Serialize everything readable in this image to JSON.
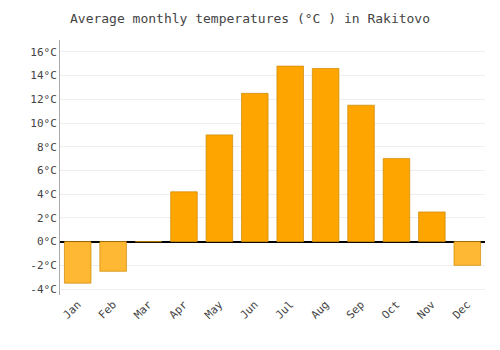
{
  "chart_data": {
    "type": "bar",
    "title": "Average monthly temperatures (°C ) in Rakitovo",
    "categories": [
      "Jan",
      "Feb",
      "Mar",
      "Apr",
      "May",
      "Jun",
      "Jul",
      "Aug",
      "Sep",
      "Oct",
      "Nov",
      "Dec"
    ],
    "values": [
      -3.5,
      -2.5,
      0.0,
      4.2,
      9.0,
      12.5,
      14.8,
      14.6,
      11.5,
      7.0,
      2.5,
      -2.0
    ],
    "colors": [
      "#FFB833",
      "#FFB833",
      "#FFA500",
      "#FFA500",
      "#FFA500",
      "#FFA500",
      "#FFA500",
      "#FFA500",
      "#FFA500",
      "#FFA500",
      "#FFA500",
      "#FFB833"
    ],
    "ylim": [
      -4.5,
      17
    ],
    "yticks": [
      {
        "value": -4,
        "label": "-4°C"
      },
      {
        "value": -2,
        "label": "-2°C"
      },
      {
        "value": 0,
        "label": "0°C"
      },
      {
        "value": 2,
        "label": "2°C"
      },
      {
        "value": 4,
        "label": "4°C"
      },
      {
        "value": 6,
        "label": "6°C"
      },
      {
        "value": 8,
        "label": "8°C"
      },
      {
        "value": 10,
        "label": "10°C"
      },
      {
        "value": 12,
        "label": "12°C"
      },
      {
        "value": 14,
        "label": "14°C"
      },
      {
        "value": 16,
        "label": "16°C"
      }
    ],
    "grid": true
  }
}
